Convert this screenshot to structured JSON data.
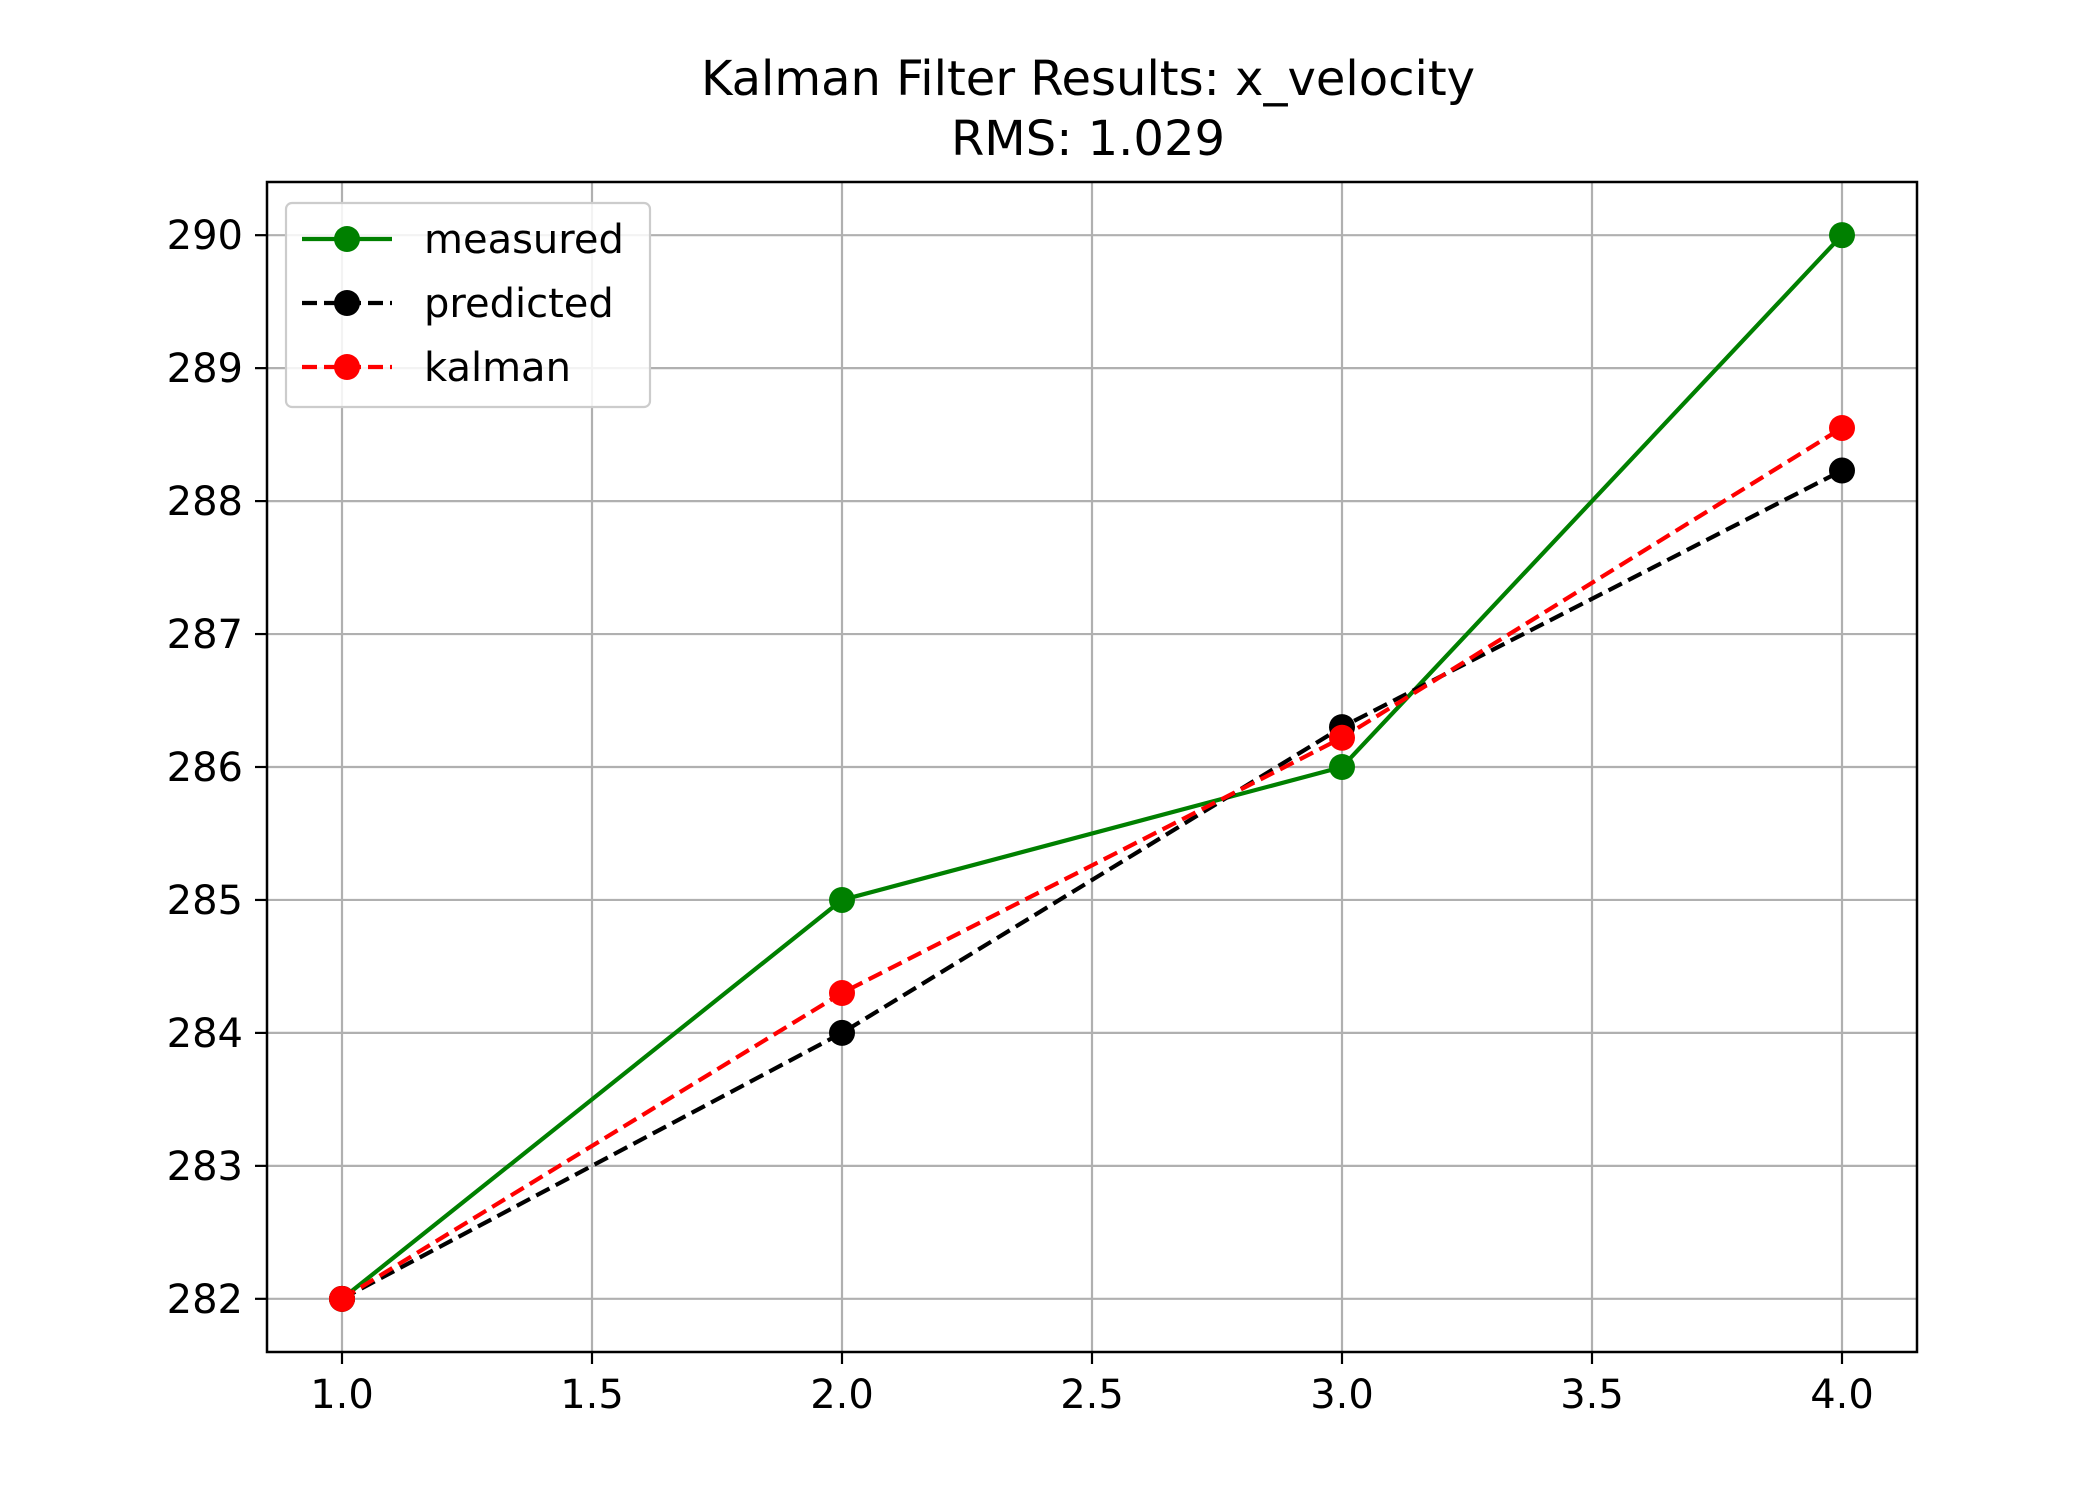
{
  "chart_data": {
    "type": "line",
    "title": "Kalman Filter Results: x_velocity",
    "subtitle": "RMS: 1.029",
    "xlabel": "",
    "ylabel": "",
    "xlim": [
      0.85,
      4.15
    ],
    "ylim": [
      281.6,
      290.4
    ],
    "xticks": [
      1.0,
      1.5,
      2.0,
      2.5,
      3.0,
      3.5,
      4.0
    ],
    "xtick_labels": [
      "1.0",
      "1.5",
      "2.0",
      "2.5",
      "3.0",
      "3.5",
      "4.0"
    ],
    "yticks": [
      282,
      283,
      284,
      285,
      286,
      287,
      288,
      289,
      290
    ],
    "ytick_labels": [
      "282",
      "283",
      "284",
      "285",
      "286",
      "287",
      "288",
      "289",
      "290"
    ],
    "grid": true,
    "legend_position": "top-left",
    "series": [
      {
        "name": "measured",
        "color": "#008000",
        "line_style": "solid",
        "x": [
          1,
          2,
          3,
          4
        ],
        "values": [
          282,
          285,
          286,
          290
        ]
      },
      {
        "name": "predicted",
        "color": "#000000",
        "line_style": "dashed",
        "x": [
          1,
          2,
          3,
          4
        ],
        "values": [
          282,
          284,
          286.3,
          288.23
        ]
      },
      {
        "name": "kalman",
        "color": "#ff0000",
        "line_style": "dashed",
        "x": [
          1,
          2,
          3,
          4
        ],
        "values": [
          282,
          284.3,
          286.22,
          288.55
        ]
      }
    ]
  }
}
